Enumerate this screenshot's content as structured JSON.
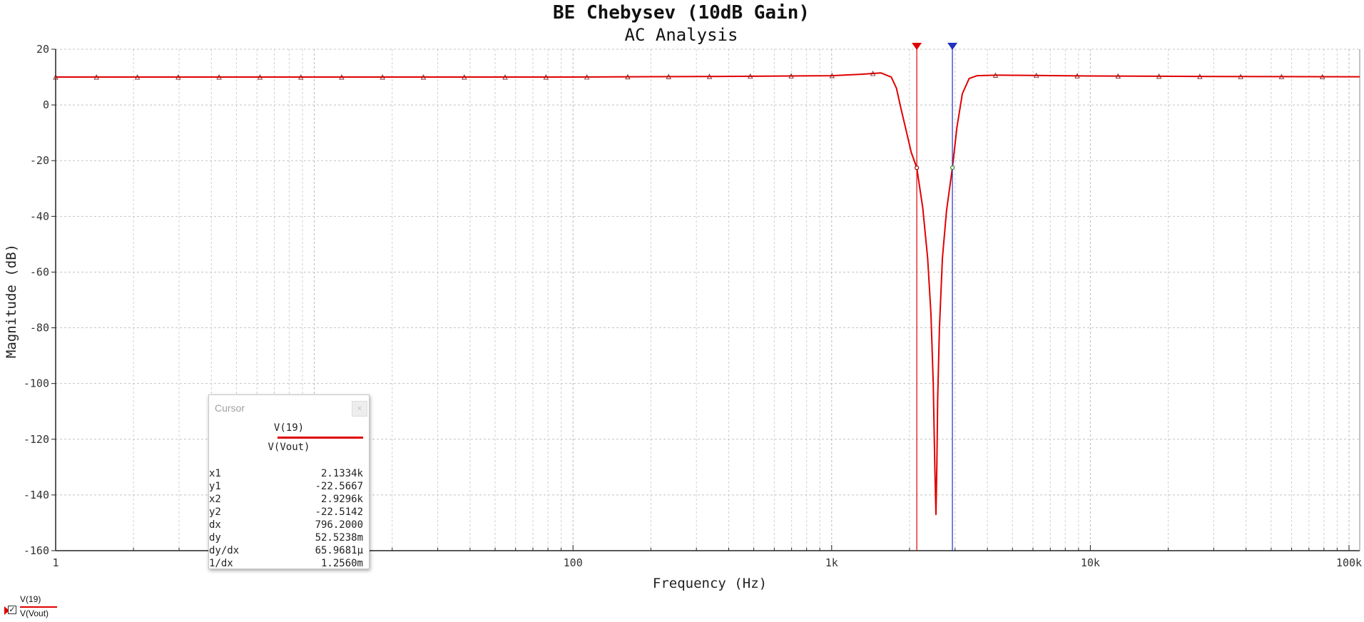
{
  "chart_data": {
    "type": "line",
    "title": "BE Chebysev (10dB Gain)",
    "subtitle": "AC Analysis",
    "xlabel": "Frequency (Hz)",
    "ylabel": "Magnitude (dB)",
    "x_scale": "log",
    "xlim": [
      1,
      110000
    ],
    "ylim": [
      -160,
      20
    ],
    "x_ticks": [
      {
        "value": 1,
        "label": "1"
      },
      {
        "value": 100,
        "label": "100"
      },
      {
        "value": 1000,
        "label": "1k"
      },
      {
        "value": 10000,
        "label": "10k"
      },
      {
        "value": 100000,
        "label": "100k"
      }
    ],
    "y_ticks": [
      20,
      0,
      -20,
      -40,
      -60,
      -80,
      -100,
      -120,
      -140,
      -160
    ],
    "grid": true,
    "series": [
      {
        "name": "V(19)",
        "color": "#e00000",
        "x": [
          1,
          10,
          100,
          500,
          1000,
          1300,
          1550,
          1700,
          1780,
          1850,
          1950,
          2030,
          2133.4,
          2250,
          2350,
          2420,
          2470,
          2505,
          2530,
          2550,
          2570,
          2610,
          2680,
          2780,
          2929.6,
          3050,
          3200,
          3400,
          3650,
          3950,
          4500,
          6000,
          10000,
          30000,
          100000,
          110000
        ],
        "y": [
          10,
          10,
          10,
          10.3,
          10.5,
          11,
          11.5,
          10,
          6,
          -1,
          -10,
          -17,
          -22.5667,
          -37,
          -55,
          -75,
          -100,
          -130,
          -147,
          -130,
          -105,
          -80,
          -55,
          -38,
          -22.5142,
          -8,
          4,
          9.5,
          10.5,
          10.6,
          10.7,
          10.6,
          10.4,
          10.2,
          10.1,
          10.1
        ]
      }
    ],
    "cursors": [
      {
        "name": "cursor-1",
        "x": 2133.4,
        "y": -22.5667,
        "color": "#e00000"
      },
      {
        "name": "cursor-2",
        "x": 2929.6,
        "y": -22.5142,
        "color": "#2030c0"
      }
    ]
  },
  "cursor_panel": {
    "title": "Cursor",
    "close_label": "×",
    "trace_top": "V(19)",
    "trace_bottom": "V(Vout)",
    "rows": [
      {
        "label": "x1",
        "value": "2.1334k"
      },
      {
        "label": "y1",
        "value": "-22.5667"
      },
      {
        "label": "x2",
        "value": "2.9296k"
      },
      {
        "label": "y2",
        "value": "-22.5142"
      },
      {
        "label": "dx",
        "value": "796.2000"
      },
      {
        "label": "dy",
        "value": "52.5238m"
      },
      {
        "label": "dy/dx",
        "value": "65.9681μ"
      },
      {
        "label": "1/dx",
        "value": "1.2560m"
      }
    ]
  },
  "legend": {
    "label_top": "V(19)",
    "label_bottom": "V(Vout)",
    "checked_glyph": "✓"
  }
}
